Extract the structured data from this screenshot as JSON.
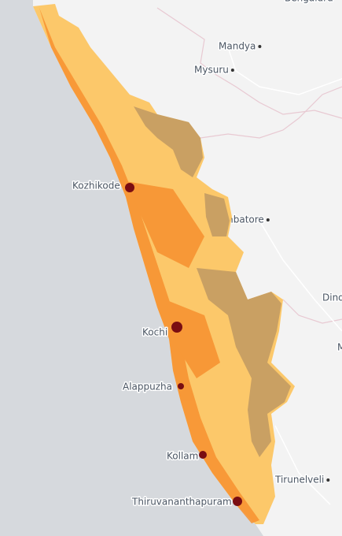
{
  "places": [
    {
      "name": "Bengaluru"
    },
    {
      "name": "Mandya"
    },
    {
      "name": "Mysuru"
    },
    {
      "name": "Coimbatore"
    },
    {
      "name": "Dindigul"
    },
    {
      "name": "Madurai"
    },
    {
      "name": "Tirunelveli"
    },
    {
      "name": "Kozhikode"
    },
    {
      "name": "Kochi"
    },
    {
      "name": "Alappuzha"
    },
    {
      "name": "Kollam"
    },
    {
      "name": "Thiruvananthapuram"
    }
  ]
}
